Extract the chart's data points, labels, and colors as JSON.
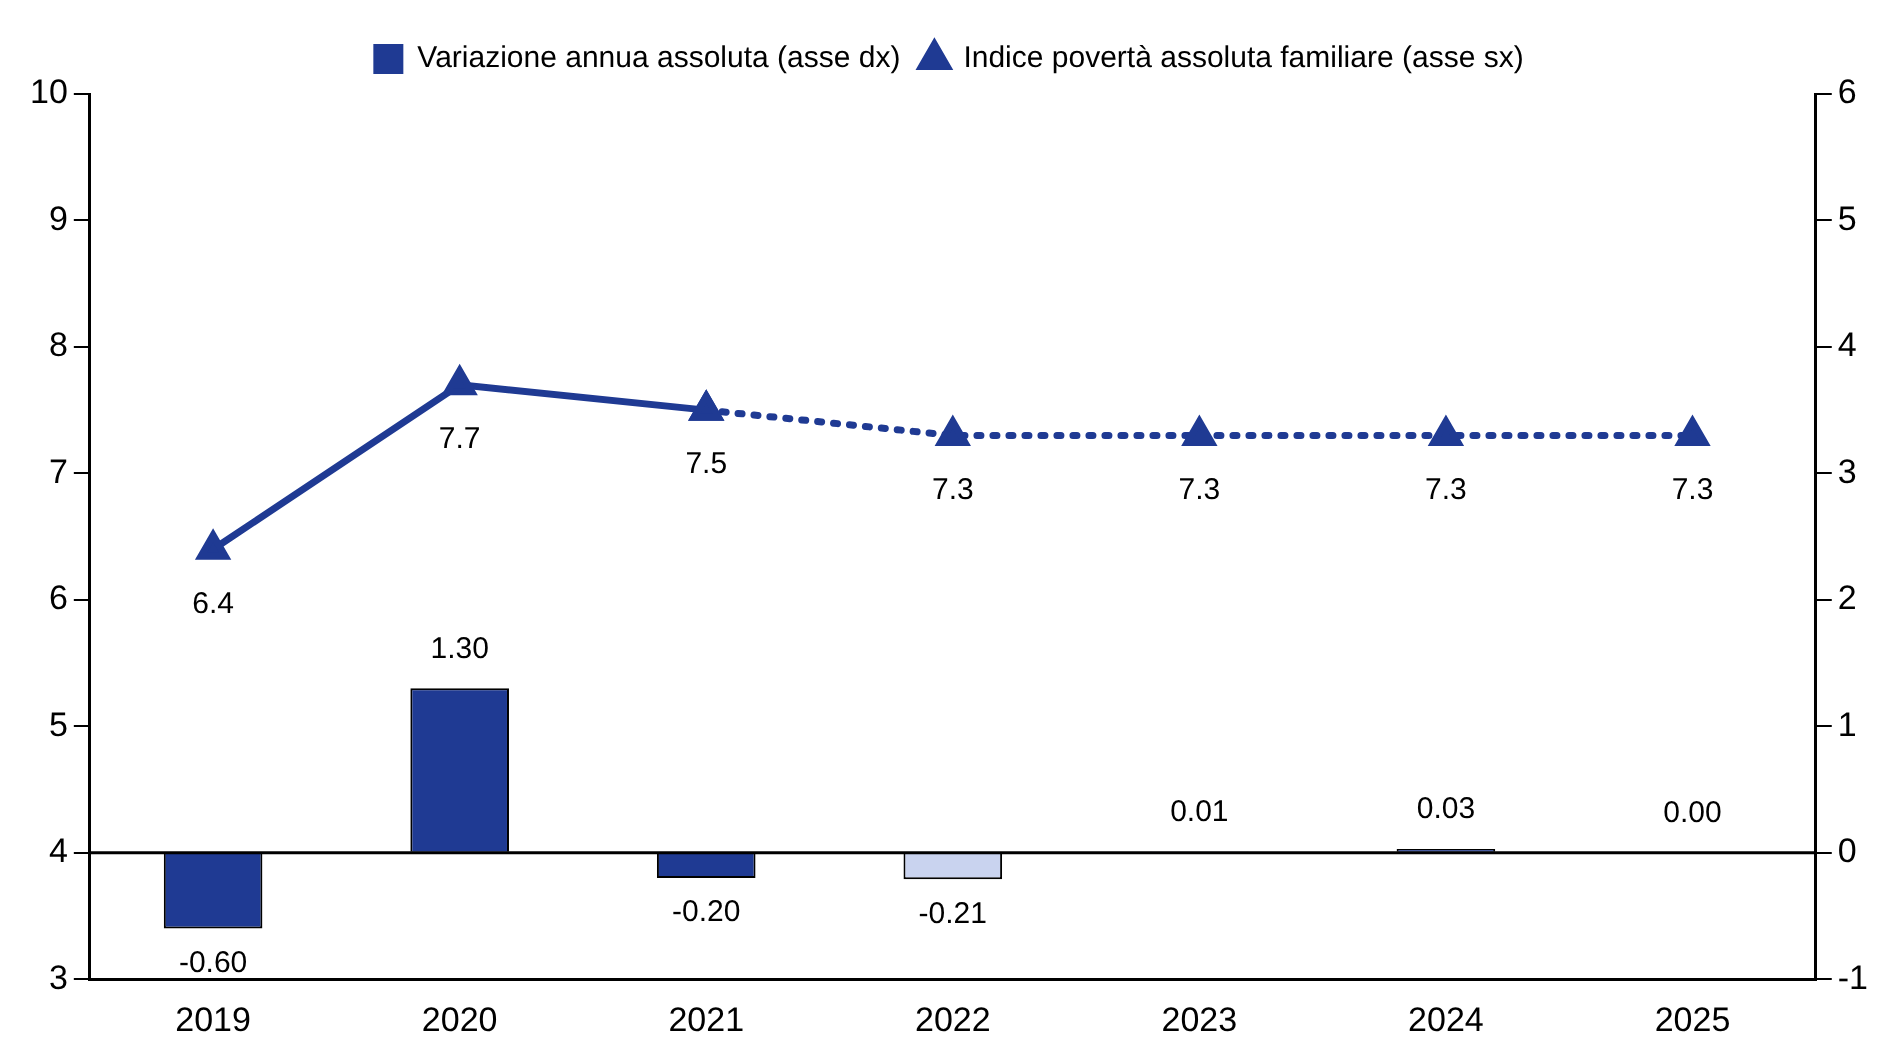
{
  "chart_data": {
    "type": "bar",
    "categories": [
      "2019",
      "2020",
      "2021",
      "2022",
      "2023",
      "2024",
      "2025"
    ],
    "series": [
      {
        "name": "Variazione annua assoluta (asse dx)",
        "axis": "y2",
        "color": "#1f3a93",
        "colors": [
          "#1f3a93",
          "#1f3a93",
          "#1f3a93",
          "#c9d3ef",
          "#1f3a93",
          "#1f3a93",
          "#1f3a93"
        ],
        "values": [
          -0.6,
          1.3,
          -0.2,
          -0.21,
          0.01,
          0.03,
          0.0
        ],
        "value_labels": [
          "-0.60",
          "1.30",
          "-0.20",
          "-0.21",
          "0.01",
          "0.03",
          "0.00"
        ]
      },
      {
        "name": "Indice povertà assoluta familiare (asse sx)",
        "type": "line",
        "color": "#1f3a93",
        "marker": "triangle",
        "line_style": "solid",
        "values": [
          6.4,
          7.7,
          7.5,
          null,
          null,
          null,
          null
        ],
        "value_labels": [
          "6.4",
          "7.7",
          "7.5",
          null,
          null,
          null,
          null
        ]
      },
      {
        "type": "line",
        "color": "#1f3a93",
        "marker": "triangle",
        "line_style": "dotted",
        "values": [
          null,
          null,
          7.5,
          7.3,
          7.3,
          7.3,
          7.3
        ],
        "value_labels": [
          null,
          null,
          null,
          "7.3",
          "7.3",
          "7.3",
          "7.3"
        ]
      }
    ],
    "ylim": [
      3,
      10
    ],
    "yticks": [
      3,
      4,
      5,
      6,
      7,
      8,
      9,
      10
    ],
    "y2lim": [
      -1,
      6
    ],
    "y2ticks": [
      -1,
      0,
      1,
      2,
      3,
      4,
      5,
      6
    ],
    "ref_lines": [
      {
        "axis": "y2",
        "value": 0,
        "color": "#000000"
      }
    ],
    "grid": false,
    "legend": "top"
  }
}
